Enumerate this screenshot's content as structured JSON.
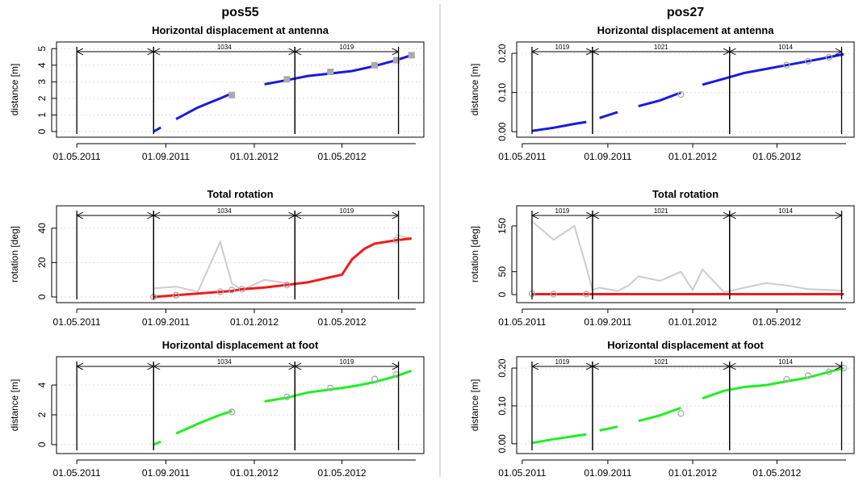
{
  "chart_data": [
    {
      "type": "line",
      "title": "pos55",
      "panels": [
        {
          "subtitle": "Horizontal displacement at antenna",
          "ylabel": "distance [m]",
          "xlim": [
            "03.04.2011",
            "22.08.2012"
          ],
          "xticks": [
            "01.05.2011",
            "01.09.2011",
            "01.01.2012",
            "01.05.2012"
          ],
          "ylim": [
            -0.34,
            5.4
          ],
          "yticks": [
            0,
            1,
            2,
            3,
            4,
            5
          ],
          "grid": true,
          "periods": [
            {
              "start": "01.05.2011",
              "end": "15.08.2011",
              "label": null
            },
            {
              "start": "15.08.2011",
              "end": "26.02.2012",
              "label": "1034"
            },
            {
              "start": "26.02.2012",
              "end": "18.07.2012",
              "label": "1019"
            }
          ],
          "x": [
            "15.08.2011",
            "25.08.2011",
            "05.09.2011",
            "15.09.2011",
            "15.10.2011",
            "15.11.2011",
            "01.12.2011",
            "15.12.2011",
            "15.01.2012",
            "15.02.2012",
            "15.03.2012",
            "15.04.2012",
            "15.05.2012",
            "15.06.2012",
            "15.07.2012",
            "05.08.2012"
          ],
          "series": [
            {
              "color": "#1a1adc",
              "style": "line",
              "values": [
                0,
                0.25,
                null,
                0.75,
                1.45,
                2.0,
                2.3,
                null,
                2.85,
                3.1,
                3.35,
                3.5,
                3.65,
                3.95,
                4.3,
                4.6
              ]
            },
            {
              "color": "#aaaaaa",
              "style": "points",
              "marker": "square",
              "values": [
                null,
                null,
                null,
                null,
                null,
                null,
                2.2,
                null,
                null,
                3.15,
                null,
                3.6,
                null,
                4.0,
                4.3,
                4.6
              ]
            }
          ]
        },
        {
          "subtitle": "Total rotation",
          "ylabel": "rotation [deg]",
          "xlim": [
            "03.04.2011",
            "22.08.2012"
          ],
          "xticks": [
            "01.05.2011",
            "01.09.2011",
            "01.01.2012",
            "01.05.2012"
          ],
          "ylim": [
            -3.3,
            53
          ],
          "yticks": [
            0,
            20,
            40
          ],
          "grid": true,
          "periods": [
            {
              "start": "01.05.2011",
              "end": "15.08.2011",
              "label": null
            },
            {
              "start": "15.08.2011",
              "end": "26.02.2012",
              "label": "1034"
            },
            {
              "start": "26.02.2012",
              "end": "18.07.2012",
              "label": "1019"
            }
          ],
          "x": [
            "15.08.2011",
            "15.09.2011",
            "15.10.2011",
            "15.11.2011",
            "01.12.2011",
            "15.12.2011",
            "15.01.2012",
            "15.02.2012",
            "15.03.2012",
            "15.04.2012",
            "01.05.2012",
            "15.05.2012",
            "01.06.2012",
            "15.06.2012",
            "15.07.2012",
            "05.08.2012"
          ],
          "series": [
            {
              "color": "#cccccc",
              "style": "line",
              "width": 2,
              "values": [
                5,
                6,
                3,
                32,
                8,
                4,
                10,
                8,
                null,
                null,
                null,
                null,
                null,
                null,
                36,
                34
              ]
            },
            {
              "color": "#ee1c1c",
              "style": "line",
              "values": [
                0,
                1,
                2,
                3,
                3.5,
                4.5,
                5.5,
                7,
                8.5,
                11.5,
                13,
                22,
                28,
                31,
                33,
                34
              ]
            },
            {
              "color": "#aaaaaa",
              "style": "points",
              "marker": "circle",
              "values": [
                0,
                1,
                null,
                3,
                4,
                4.5,
                null,
                7,
                null,
                null,
                null,
                null,
                null,
                null,
                33,
                null
              ]
            }
          ]
        },
        {
          "subtitle": "Horizontal displacement at foot",
          "ylabel": "distance [m]",
          "xlim": [
            "03.04.2011",
            "22.08.2012"
          ],
          "xticks": [
            "01.05.2011",
            "01.09.2011",
            "01.01.2012",
            "01.05.2012"
          ],
          "ylim": [
            -0.6,
            5.9
          ],
          "yticks": [
            0,
            2,
            4
          ],
          "grid": true,
          "periods": [
            {
              "start": "01.05.2011",
              "end": "15.08.2011",
              "label": null
            },
            {
              "start": "15.08.2011",
              "end": "26.02.2012",
              "label": "1034"
            },
            {
              "start": "26.02.2012",
              "end": "18.07.2012",
              "label": "1019"
            }
          ],
          "x": [
            "15.08.2011",
            "25.08.2011",
            "05.09.2011",
            "15.09.2011",
            "15.10.2011",
            "15.11.2011",
            "01.12.2011",
            "15.12.2011",
            "15.01.2012",
            "15.02.2012",
            "15.03.2012",
            "15.04.2012",
            "15.05.2012",
            "15.06.2012",
            "15.07.2012",
            "05.08.2012"
          ],
          "series": [
            {
              "color": "#22ee22",
              "style": "line",
              "values": [
                0,
                0.2,
                null,
                0.75,
                1.4,
                2.0,
                2.25,
                null,
                2.9,
                3.15,
                3.5,
                3.7,
                3.9,
                4.2,
                4.6,
                4.95
              ]
            },
            {
              "color": "#aaaaaa",
              "style": "points",
              "marker": "circle",
              "values": [
                null,
                null,
                null,
                null,
                null,
                null,
                2.2,
                null,
                null,
                3.2,
                null,
                3.8,
                null,
                4.4,
                4.7,
                null
              ]
            }
          ]
        }
      ]
    },
    {
      "type": "line",
      "title": "pos27",
      "panels": [
        {
          "subtitle": "Horizontal displacement at antenna",
          "ylabel": "distance [m]",
          "xlim": [
            "23.04.2011",
            "20.08.2012"
          ],
          "xticks": [
            "01.05.2011",
            "01.09.2011",
            "01.01.2012",
            "01.05.2012"
          ],
          "ylim": [
            -0.014,
            0.229
          ],
          "yticks": [
            {
              "value": 0,
              "label": "0.00"
            },
            {
              "value": 0.1,
              "label": "0.10"
            },
            {
              "value": 0.2,
              "label": "0.20"
            }
          ],
          "grid": true,
          "periods": [
            {
              "start": "15.05.2011",
              "end": "10.08.2011",
              "label": "1019"
            },
            {
              "start": "10.08.2011",
              "end": "23.02.2012",
              "label": "1021"
            },
            {
              "start": "23.02.2012",
              "end": "02.08.2012",
              "label": "1014"
            }
          ],
          "x": [
            "15.05.2011",
            "15.06.2011",
            "15.07.2011",
            "01.08.2011",
            "10.08.2011",
            "20.08.2011",
            "15.09.2011",
            "01.10.2011",
            "15.10.2011",
            "15.11.2011",
            "15.12.2011",
            "01.01.2012",
            "15.01.2012",
            "15.02.2012",
            "15.03.2012",
            "15.04.2012",
            "15.05.2012",
            "15.06.2012",
            "15.07.2012",
            "05.08.2012"
          ],
          "series": [
            {
              "color": "#1a1adc",
              "style": "line",
              "values": [
                0.002,
                0.01,
                0.02,
                0.025,
                null,
                0.035,
                0.05,
                null,
                0.065,
                0.08,
                0.1,
                null,
                0.12,
                0.135,
                0.15,
                0.16,
                0.17,
                0.18,
                0.19,
                0.198
              ]
            },
            {
              "color": "#aaaaaa",
              "style": "points",
              "marker": "circle",
              "values": [
                null,
                null,
                null,
                null,
                null,
                null,
                null,
                null,
                null,
                null,
                0.095,
                null,
                null,
                null,
                null,
                null,
                0.17,
                0.18,
                0.19,
                null
              ]
            }
          ]
        },
        {
          "subtitle": "Total rotation",
          "ylabel": "rotation [deg]",
          "xlim": [
            "23.04.2011",
            "20.08.2012"
          ],
          "xticks": [
            "01.05.2011",
            "01.09.2011",
            "01.01.2012",
            "01.05.2012"
          ],
          "ylim": [
            -17.6,
            194
          ],
          "yticks": [
            0,
            50,
            150
          ],
          "grid": false,
          "periods": [
            {
              "start": "15.05.2011",
              "end": "10.08.2011",
              "label": "1019"
            },
            {
              "start": "10.08.2011",
              "end": "23.02.2012",
              "label": "1021"
            },
            {
              "start": "23.02.2012",
              "end": "02.08.2012",
              "label": "1014"
            }
          ],
          "x": [
            "15.05.2011",
            "15.06.2011",
            "15.07.2011",
            "01.08.2011",
            "10.08.2011",
            "20.08.2011",
            "15.09.2011",
            "01.10.2011",
            "15.10.2011",
            "15.11.2011",
            "15.12.2011",
            "01.01.2012",
            "15.01.2012",
            "15.02.2012",
            "15.03.2012",
            "15.04.2012",
            "15.05.2012",
            "15.06.2012",
            "15.07.2012",
            "05.08.2012"
          ],
          "series": [
            {
              "color": "#cccccc",
              "style": "line",
              "width": 2,
              "values": [
                160,
                120,
                150,
                60,
                10,
                15,
                8,
                20,
                40,
                30,
                50,
                10,
                55,
                5,
                15,
                25,
                20,
                12,
                10,
                8
              ]
            },
            {
              "color": "#ee1c1c",
              "style": "line",
              "values": [
                1,
                1,
                1,
                1,
                1,
                1,
                1,
                1,
                1,
                1,
                1,
                1,
                1,
                1,
                1,
                1,
                1,
                1,
                1,
                1
              ]
            },
            {
              "color": "#aaaaaa",
              "style": "points",
              "marker": "circle",
              "values": [
                2,
                1,
                null,
                1,
                null,
                null,
                null,
                null,
                null,
                null,
                null,
                null,
                null,
                null,
                null,
                null,
                null,
                null,
                null,
                null
              ]
            }
          ]
        },
        {
          "subtitle": "Horizontal displacement at foot",
          "ylabel": "distance [m]",
          "xlim": [
            "23.04.2011",
            "20.08.2012"
          ],
          "xticks": [
            "01.05.2011",
            "01.09.2011",
            "01.01.2012",
            "01.05.2012"
          ],
          "ylim": [
            -0.026,
            0.23
          ],
          "yticks": [
            {
              "value": 0,
              "label": "0.00"
            },
            {
              "value": 0.1,
              "label": "0.10"
            },
            {
              "value": 0.2,
              "label": "0.20"
            }
          ],
          "grid": true,
          "periods": [
            {
              "start": "15.05.2011",
              "end": "10.08.2011",
              "label": "1019"
            },
            {
              "start": "10.08.2011",
              "end": "23.02.2012",
              "label": "1021"
            },
            {
              "start": "23.02.2012",
              "end": "02.08.2012",
              "label": "1014"
            }
          ],
          "x": [
            "15.05.2011",
            "15.06.2011",
            "15.07.2011",
            "01.08.2011",
            "10.08.2011",
            "20.08.2011",
            "15.09.2011",
            "01.10.2011",
            "15.10.2011",
            "15.11.2011",
            "15.12.2011",
            "01.01.2012",
            "15.01.2012",
            "15.02.2012",
            "15.03.2012",
            "15.04.2012",
            "15.05.2012",
            "15.06.2012",
            "15.07.2012",
            "05.08.2012"
          ],
          "series": [
            {
              "color": "#22ee22",
              "style": "line",
              "values": [
                0.002,
                0.012,
                0.02,
                0.025,
                null,
                0.035,
                0.045,
                null,
                0.06,
                0.075,
                0.095,
                null,
                0.12,
                0.14,
                0.15,
                0.155,
                0.165,
                0.175,
                0.19,
                0.2
              ]
            },
            {
              "color": "#aaaaaa",
              "style": "points",
              "marker": "circle",
              "values": [
                null,
                null,
                null,
                null,
                null,
                null,
                null,
                null,
                null,
                null,
                0.08,
                null,
                null,
                null,
                null,
                null,
                0.17,
                0.18,
                0.19,
                0.2
              ]
            }
          ]
        }
      ]
    }
  ]
}
